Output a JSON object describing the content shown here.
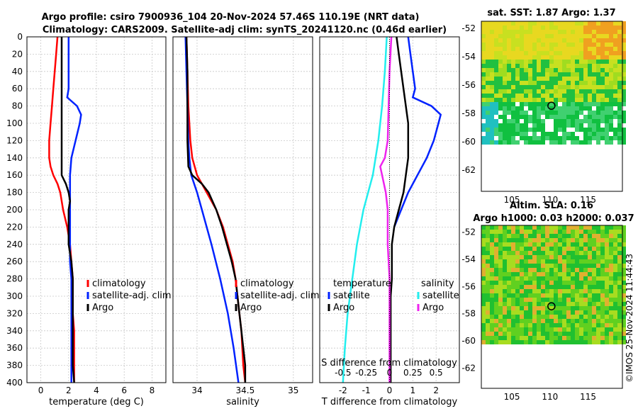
{
  "title": {
    "line1": "Argo profile: csiro 7900936_104 20-Nov-2024 57.46S 110.19E (NRT data)",
    "line2": "Climatology: CARS2009. Satellite-adj clim: synTS_20241120.nc (0.46d earlier)"
  },
  "watermark": "©IMOS 25-Nov-2024 11:44:43",
  "colors": {
    "climatology": "#ff0000",
    "satellite": "#0022ff",
    "argo": "#000000",
    "salinity_sat": "#22eeee",
    "salinity_argo": "#ee22ee"
  },
  "chart_data": [
    {
      "type": "line",
      "id": "temperature",
      "xlabel": "temperature (deg C)",
      "ylabel": "",
      "xlim": [
        -1,
        9
      ],
      "ylim": [
        400,
        0
      ],
      "xticks": [
        "0",
        "2",
        "4",
        "6",
        "8"
      ],
      "xtick_values": [
        0,
        2,
        4,
        6,
        8
      ],
      "yticks": [
        "0",
        "20",
        "40",
        "60",
        "80",
        "100",
        "120",
        "140",
        "160",
        "180",
        "200",
        "220",
        "240",
        "260",
        "280",
        "300",
        "320",
        "340",
        "360",
        "380",
        "400"
      ],
      "grid": true,
      "legend": {
        "position": "bottom-right",
        "entries": [
          "climatology",
          "satellite-adj. clim",
          "Argo"
        ]
      },
      "series": [
        {
          "name": "climatology",
          "color": "#ff0000",
          "depth": [
            0,
            20,
            40,
            60,
            80,
            100,
            120,
            140,
            150,
            160,
            170,
            180,
            200,
            220,
            240,
            260,
            280,
            300,
            320,
            340,
            360,
            380,
            400
          ],
          "values": [
            1.2,
            1.1,
            1.0,
            0.9,
            0.8,
            0.7,
            0.6,
            0.6,
            0.7,
            0.9,
            1.2,
            1.4,
            1.6,
            1.9,
            2.1,
            2.2,
            2.3,
            2.3,
            2.3,
            2.4,
            2.4,
            2.4,
            2.4
          ]
        },
        {
          "name": "satellite-adj. clim",
          "color": "#0022ff",
          "depth": [
            0,
            20,
            40,
            60,
            70,
            80,
            90,
            100,
            120,
            140,
            160,
            180,
            200,
            220,
            240,
            260,
            280,
            300,
            320,
            340,
            360,
            380,
            400
          ],
          "values": [
            2.0,
            2.0,
            2.0,
            2.0,
            1.9,
            2.6,
            2.9,
            2.8,
            2.5,
            2.2,
            2.1,
            2.1,
            2.1,
            2.1,
            2.1,
            2.1,
            2.2,
            2.2,
            2.2,
            2.2,
            2.2,
            2.2,
            2.2
          ]
        },
        {
          "name": "Argo",
          "color": "#000000",
          "depth": [
            0,
            20,
            40,
            60,
            80,
            100,
            120,
            140,
            160,
            170,
            180,
            190,
            200,
            220,
            240,
            260,
            280,
            300,
            320,
            340,
            360,
            380,
            400
          ],
          "values": [
            1.5,
            1.5,
            1.5,
            1.5,
            1.5,
            1.5,
            1.5,
            1.5,
            1.5,
            1.8,
            2.0,
            2.1,
            2.0,
            2.0,
            2.0,
            2.2,
            2.3,
            2.3,
            2.3,
            2.3,
            2.3,
            2.3,
            2.4
          ]
        }
      ]
    },
    {
      "type": "line",
      "id": "salinity",
      "xlabel": "salinity",
      "xlim": [
        33.75,
        35.2
      ],
      "ylim": [
        400,
        0
      ],
      "xticks": [
        "34",
        "34.5",
        "35"
      ],
      "xtick_values": [
        34,
        34.5,
        35
      ],
      "grid": true,
      "legend": {
        "position": "bottom-right",
        "entries": [
          "climatology",
          "satellite-adj. clim",
          "Argo"
        ]
      },
      "series": [
        {
          "name": "climatology",
          "color": "#ff0000",
          "depth": [
            0,
            40,
            80,
            120,
            140,
            160,
            180,
            200,
            220,
            240,
            260,
            280,
            300,
            320,
            340,
            360,
            380,
            400
          ],
          "values": [
            33.89,
            33.9,
            33.91,
            33.93,
            33.95,
            34.0,
            34.1,
            34.2,
            34.27,
            34.32,
            34.37,
            34.4,
            34.42,
            34.44,
            34.46,
            34.47,
            34.48,
            34.5
          ]
        },
        {
          "name": "satellite-adj. clim",
          "color": "#0022ff",
          "depth": [
            0,
            40,
            80,
            120,
            140,
            160,
            180,
            200,
            240,
            280,
            320,
            360,
            400
          ],
          "values": [
            33.88,
            33.89,
            33.9,
            33.91,
            33.92,
            33.94,
            34.0,
            34.05,
            34.15,
            34.24,
            34.32,
            34.38,
            34.43
          ]
        },
        {
          "name": "Argo",
          "color": "#000000",
          "depth": [
            0,
            40,
            80,
            120,
            150,
            160,
            170,
            180,
            200,
            220,
            240,
            260,
            280,
            300,
            320,
            340,
            360,
            380,
            400
          ],
          "values": [
            33.89,
            33.9,
            33.9,
            33.9,
            33.91,
            33.95,
            34.05,
            34.12,
            34.2,
            34.26,
            34.31,
            34.36,
            34.4,
            34.42,
            34.44,
            34.46,
            34.48,
            34.5,
            34.5
          ]
        }
      ]
    },
    {
      "type": "line",
      "id": "difference",
      "xlabel": "T difference from climatology",
      "xlabel_top": "S difference from climatology",
      "xlim": [
        -3,
        3
      ],
      "ylim": [
        400,
        0
      ],
      "xticks": [
        "-2",
        "-1",
        "0",
        "1",
        "2"
      ],
      "xtick_values": [
        -2,
        -1,
        0,
        1,
        2
      ],
      "sticks": [
        "-0.5",
        "-0.25",
        "0",
        "0.25",
        "0.5"
      ],
      "stick_values": [
        -0.5,
        -0.25,
        0,
        0.25,
        0.5
      ],
      "grid": true,
      "legend": {
        "position": "bottom-center",
        "groups": [
          {
            "title": "temperature",
            "entries": [
              "satellite",
              "Argo"
            ]
          },
          {
            "title": "salinity",
            "entries": [
              "satellite",
              "Argo"
            ]
          }
        ]
      },
      "series": [
        {
          "name": "temperature satellite",
          "color": "#0022ff",
          "depth": [
            0,
            20,
            40,
            60,
            70,
            80,
            90,
            100,
            120,
            140,
            160,
            180,
            200,
            220
          ],
          "values": [
            0.8,
            0.9,
            1.0,
            1.1,
            1.0,
            1.8,
            2.2,
            2.1,
            1.9,
            1.6,
            1.2,
            0.8,
            0.5,
            0.2
          ]
        },
        {
          "name": "temperature Argo",
          "color": "#000000",
          "depth": [
            0,
            20,
            40,
            60,
            80,
            100,
            120,
            140,
            160,
            180,
            200,
            220,
            240,
            260,
            280,
            300,
            320,
            340,
            360,
            380,
            400
          ],
          "values": [
            0.3,
            0.4,
            0.5,
            0.6,
            0.7,
            0.8,
            0.8,
            0.8,
            0.7,
            0.6,
            0.4,
            0.2,
            0.1,
            0.1,
            0.1,
            0.05,
            0.05,
            0.05,
            0.05,
            0.05,
            0.05
          ]
        },
        {
          "name": "salinity satellite",
          "color": "#22eeee",
          "depth": [
            0,
            40,
            80,
            120,
            160,
            200,
            240,
            280,
            320,
            360,
            400
          ],
          "values": [
            -0.03,
            -0.05,
            -0.08,
            -0.12,
            -0.18,
            -0.28,
            -0.35,
            -0.4,
            -0.45,
            -0.48,
            -0.5
          ]
        },
        {
          "name": "salinity Argo",
          "color": "#ee22ee",
          "depth": [
            0,
            40,
            80,
            120,
            140,
            150,
            160,
            180,
            200,
            240,
            280,
            320,
            360,
            400
          ],
          "values": [
            0.02,
            0.0,
            -0.01,
            -0.02,
            -0.05,
            -0.1,
            -0.08,
            -0.04,
            -0.02,
            -0.02,
            0.0,
            0.0,
            0.0,
            0.0
          ]
        }
      ]
    },
    {
      "type": "heatmap",
      "id": "sst_map",
      "title": "sat. SST: 1.87 Argo: 1.37",
      "xticks": [
        "105",
        "110",
        "115"
      ],
      "xtick_values": [
        105,
        110,
        115
      ],
      "yticks": [
        "-52",
        "-54",
        "-56",
        "-58",
        "-60",
        "-62"
      ],
      "ytick_values": [
        -52,
        -54,
        -56,
        -58,
        -60,
        -62
      ],
      "xlim": [
        101,
        119.5
      ],
      "ylim": [
        -63.5,
        -51.5
      ],
      "marker": {
        "lon": 110.19,
        "lat": -57.46
      }
    },
    {
      "type": "heatmap",
      "id": "sla_map",
      "title": "Altim. SLA: 0.16",
      "subtitle": "Argo h1000: 0.03 h2000: 0.037",
      "xticks": [
        "105",
        "110",
        "115"
      ],
      "xtick_values": [
        105,
        110,
        115
      ],
      "yticks": [
        "-52",
        "-54",
        "-56",
        "-58",
        "-60",
        "-62"
      ],
      "ytick_values": [
        -52,
        -54,
        -56,
        -58,
        -60,
        -62
      ],
      "xlim": [
        101,
        119.5
      ],
      "ylim": [
        -63.5,
        -51.5
      ],
      "marker": {
        "lon": 110.19,
        "lat": -57.46
      }
    }
  ]
}
